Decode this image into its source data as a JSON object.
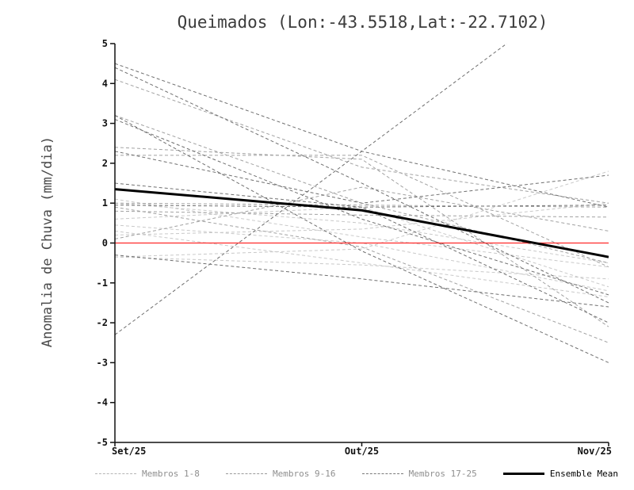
{
  "title": "Queimados (Lon:-43.5518,Lat:-22.7102)",
  "ylabel": "Anomalia de Chuva (mm/dia)",
  "chart_data": {
    "type": "line",
    "x_categories": [
      "Set/25",
      "Out/25",
      "Nov/25"
    ],
    "ylim": [
      -5,
      5
    ],
    "yticks": [
      -5,
      -4,
      -3,
      -2,
      -1,
      0,
      1,
      2,
      3,
      4,
      5
    ],
    "grid": false,
    "zero_line": {
      "y": 0,
      "color": "#ff2a2a"
    },
    "groups": [
      {
        "name": "Membros 1-8",
        "color": "#c9c9c9",
        "style": "dashed",
        "members": [
          [
            0.45,
            0.0,
            -1.2
          ],
          [
            0.3,
            -0.5,
            -1.35
          ],
          [
            -0.35,
            -0.55,
            -0.9
          ],
          [
            0.2,
            0.35,
            1.0
          ],
          [
            1.0,
            0.5,
            -0.5
          ],
          [
            0.6,
            0.9,
            -1.1
          ],
          [
            -0.35,
            -0.15,
            1.8
          ],
          [
            1.1,
            0.15,
            -0.6
          ]
        ]
      },
      {
        "name": "Membros 9-16",
        "color": "#a2a2a2",
        "style": "dashed",
        "members": [
          [
            3.2,
            1.0,
            -0.5
          ],
          [
            2.4,
            2.1,
            -2.1
          ],
          [
            1.0,
            0.95,
            0.9
          ],
          [
            0.9,
            -0.1,
            -2.5
          ],
          [
            2.2,
            2.2,
            -0.6
          ],
          [
            0.1,
            1.4,
            0.3
          ],
          [
            4.1,
            1.9,
            1.0
          ],
          [
            0.8,
            0.7,
            0.65
          ]
        ]
      },
      {
        "name": "Membros 17-25",
        "color": "#6f6f6f",
        "style": "dashed",
        "members": [
          [
            4.5,
            2.3,
            0.9
          ],
          [
            4.4,
            1.5,
            -1.5
          ],
          [
            -2.3,
            2.3,
            6.9
          ],
          [
            3.2,
            -0.2,
            -3.0
          ],
          [
            2.3,
            1.0,
            1.7
          ],
          [
            1.5,
            0.9,
            -2.0
          ],
          [
            3.1,
            0.6,
            -1.3
          ],
          [
            0.95,
            0.9,
            0.95
          ],
          [
            -0.3,
            -0.9,
            -1.6
          ]
        ]
      }
    ],
    "mean": {
      "name": "Ensemble Mean",
      "color": "#000000",
      "values": [
        1.35,
        0.82,
        -0.35
      ]
    }
  },
  "legend": [
    {
      "label": "Membros 1-8",
      "color": "#b5b5b5",
      "style": "dashed"
    },
    {
      "label": "Membros 9-16",
      "color": "#9a9a9a",
      "style": "dashed"
    },
    {
      "label": "Membros 17-25",
      "color": "#7a7a7a",
      "style": "dashed"
    },
    {
      "label": "Ensemble Mean",
      "color": "#000000",
      "style": "solid"
    }
  ]
}
